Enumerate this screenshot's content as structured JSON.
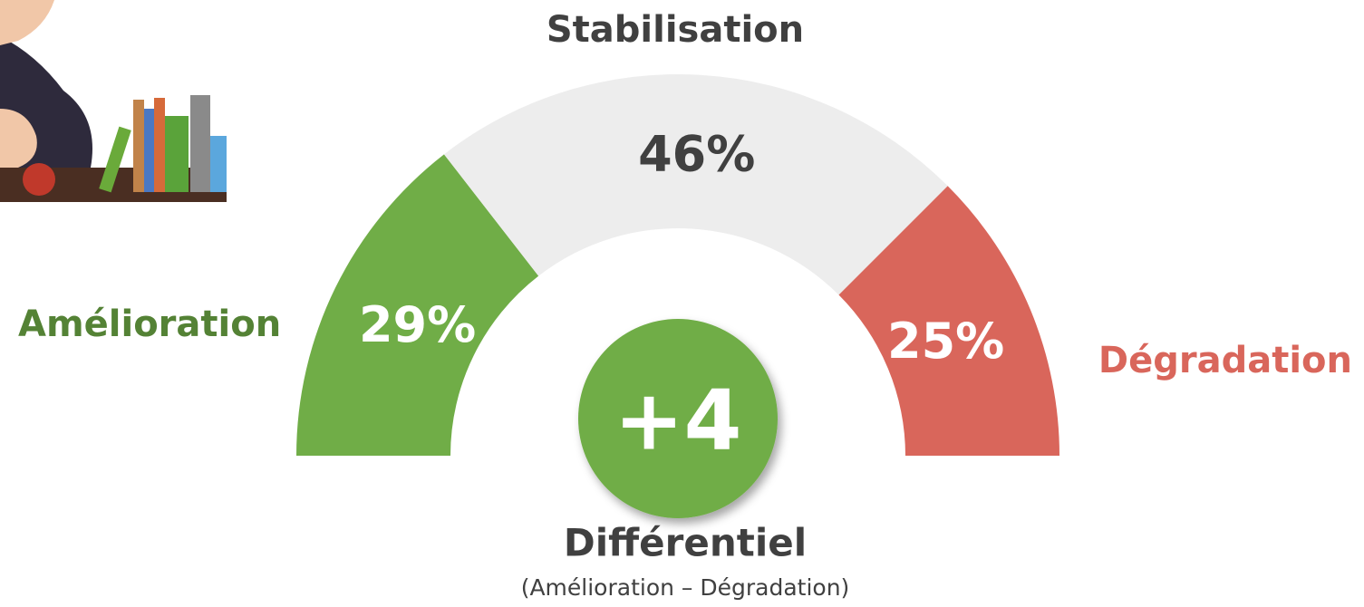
{
  "chart_data": {
    "type": "gauge",
    "categories": [
      "Amélioration",
      "Stabilisation",
      "Dégradation"
    ],
    "values": [
      29,
      46,
      25
    ],
    "value_labels": [
      "29%",
      "46%",
      "25%"
    ],
    "colors": [
      "#70AD47",
      "#EDEDED",
      "#D9665B"
    ],
    "label_colors": [
      "#548235",
      "#404040",
      "#D9665B"
    ],
    "value_label_colors": [
      "#FFFFFF",
      "#404040",
      "#FFFFFF"
    ],
    "differential": {
      "value": 4,
      "value_label": "+4",
      "label": "Différentiel",
      "note": "(Amélioration – Dégradation)",
      "color": "#70AD47"
    }
  }
}
